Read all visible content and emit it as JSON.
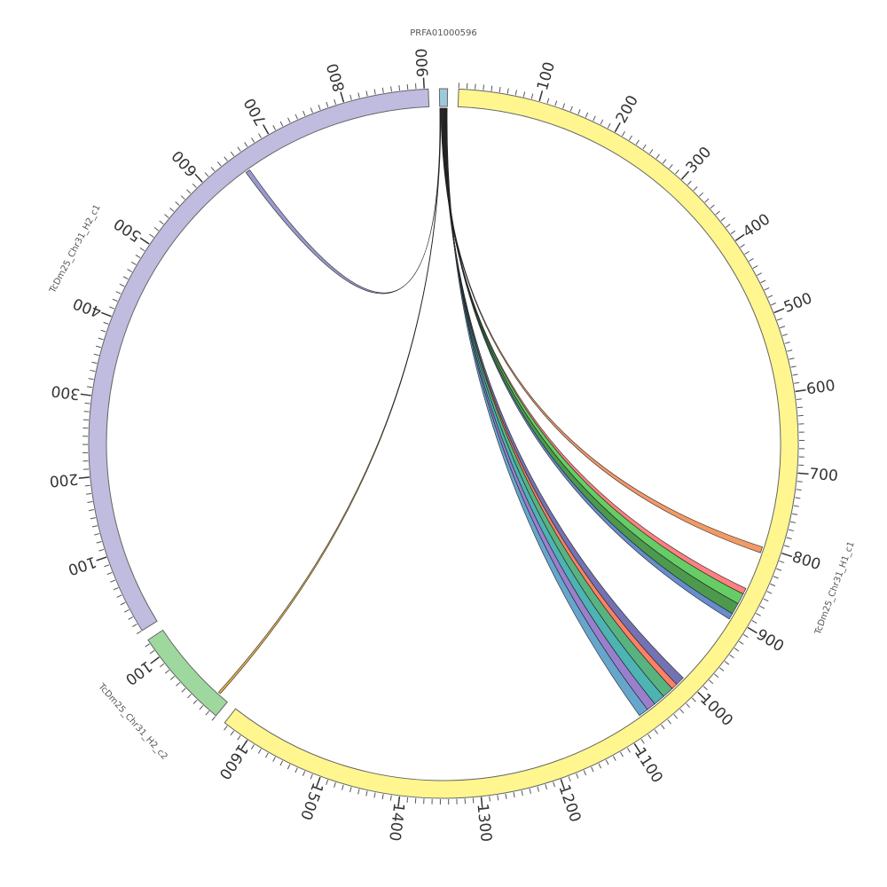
{
  "chart_data": {
    "type": "chord",
    "tick_step": 10,
    "segments": [
      {
        "name": "PRFA01000596",
        "length": 10,
        "color": "#9ec9dd",
        "ticks": []
      },
      {
        "name": "TcDm25_Chr31_H1_c1",
        "length": 1635,
        "color": "#fff68f",
        "ticks": [
          100,
          200,
          300,
          400,
          500,
          600,
          700,
          800,
          900,
          1000,
          1100,
          1200,
          1300,
          1400,
          1500,
          1600
        ]
      },
      {
        "name": "TcDm25_Chr31_H2_c2",
        "length": 125,
        "color": "#9fd89f",
        "ticks": [
          100
        ]
      },
      {
        "name": "TcDm25_Chr31_H2_c1",
        "length": 905,
        "color": "#bfbcdf",
        "ticks": [
          100,
          200,
          300,
          400,
          500,
          600,
          700,
          800,
          900
        ]
      }
    ],
    "links": [
      {
        "source": 0,
        "source_start": 0.2,
        "source_end": 0.8,
        "target": 3,
        "start": 650,
        "end": 656,
        "color": "#8080c0"
      },
      {
        "source": 0,
        "source_start": 0.9,
        "source_end": 1.4,
        "target": 2,
        "start": 14,
        "end": 17,
        "color": "#e0a020"
      },
      {
        "source": 0,
        "source_start": 1.6,
        "source_end": 2.3,
        "target": 1,
        "start": 800,
        "end": 808,
        "color": "#f08040"
      },
      {
        "source": 0,
        "source_start": 2.4,
        "source_end": 3.0,
        "target": 1,
        "start": 858,
        "end": 866,
        "color": "#ff6060"
      },
      {
        "source": 0,
        "source_start": 3.1,
        "source_end": 3.9,
        "target": 1,
        "start": 866,
        "end": 880,
        "color": "#40c040"
      },
      {
        "source": 0,
        "source_start": 4.0,
        "source_end": 4.8,
        "target": 1,
        "start": 880,
        "end": 895,
        "color": "#208020"
      },
      {
        "source": 0,
        "source_start": 4.9,
        "source_end": 5.4,
        "target": 1,
        "start": 895,
        "end": 903,
        "color": "#4070c0"
      },
      {
        "source": 0,
        "source_start": 5.5,
        "source_end": 6.2,
        "target": 1,
        "start": 1000,
        "end": 1012,
        "color": "#5050a0"
      },
      {
        "source": 0,
        "source_start": 6.3,
        "source_end": 6.8,
        "target": 1,
        "start": 1012,
        "end": 1020,
        "color": "#ff6040"
      },
      {
        "source": 0,
        "source_start": 6.9,
        "source_end": 7.6,
        "target": 1,
        "start": 1020,
        "end": 1035,
        "color": "#30a060"
      },
      {
        "source": 0,
        "source_start": 7.7,
        "source_end": 8.4,
        "target": 1,
        "start": 1035,
        "end": 1050,
        "color": "#20a0a0"
      },
      {
        "source": 0,
        "source_start": 8.5,
        "source_end": 9.1,
        "target": 1,
        "start": 1050,
        "end": 1062,
        "color": "#8060c0"
      },
      {
        "source": 0,
        "source_start": 9.2,
        "source_end": 9.8,
        "target": 1,
        "start": 1062,
        "end": 1075,
        "color": "#4090c0"
      }
    ]
  }
}
